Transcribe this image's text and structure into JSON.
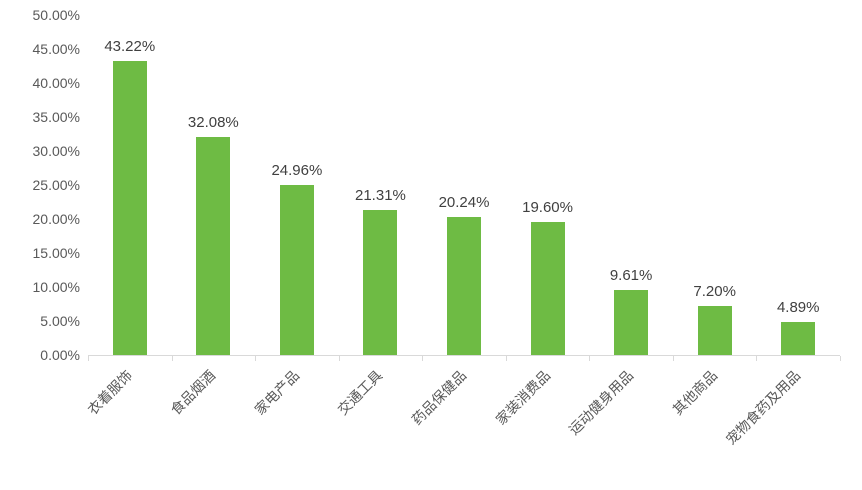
{
  "chart_data": {
    "type": "bar",
    "title": "",
    "xlabel": "",
    "ylabel": "",
    "categories": [
      "衣着服饰",
      "食品烟酒",
      "家电产品",
      "交通工具",
      "药品保健品",
      "家装消费品",
      "运动健身用品",
      "其他商品",
      "宠物食药及用品"
    ],
    "values": [
      43.22,
      32.08,
      24.96,
      21.31,
      20.24,
      19.6,
      9.61,
      7.2,
      4.89
    ],
    "data_labels": [
      "43.22%",
      "32.08%",
      "24.96%",
      "21.31%",
      "20.24%",
      "19.60%",
      "9.61%",
      "7.20%",
      "4.89%"
    ],
    "ylim": [
      0,
      50
    ],
    "ytick_step": 5,
    "ytick_labels": [
      "0.00%",
      "5.00%",
      "10.00%",
      "15.00%",
      "20.00%",
      "25.00%",
      "30.00%",
      "35.00%",
      "40.00%",
      "45.00%",
      "50.00%"
    ],
    "grid": false,
    "legend": false,
    "colors": {
      "bar": "#6ebb44",
      "axis": "#d9d9d9",
      "value_label": "#404040",
      "tick_label": "#595959",
      "background": "#ffffff"
    }
  }
}
